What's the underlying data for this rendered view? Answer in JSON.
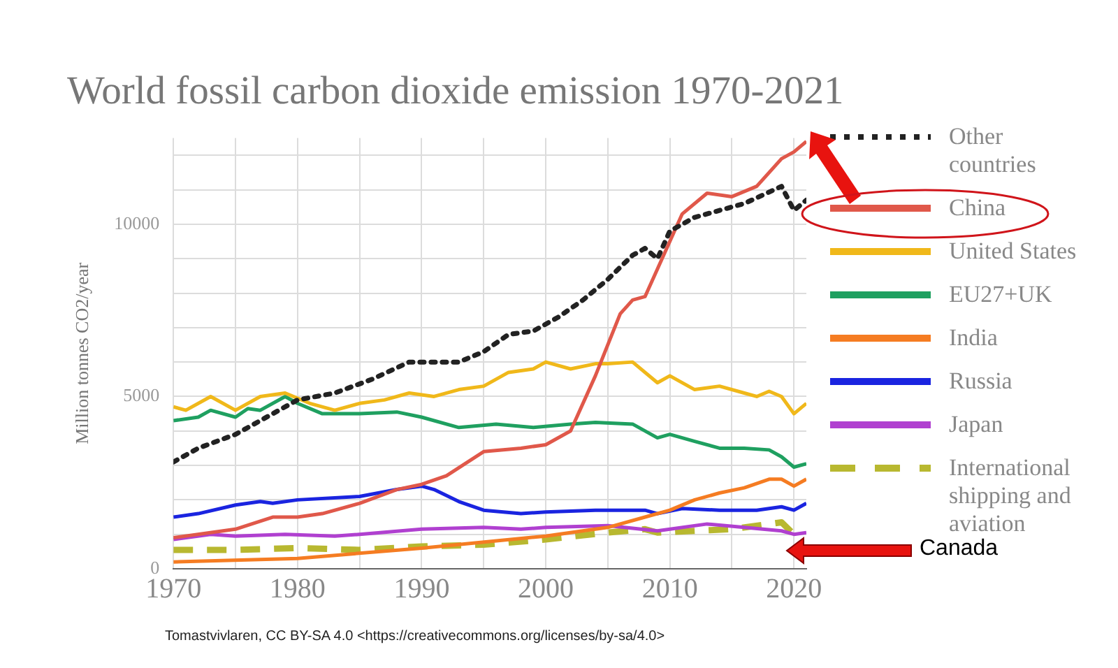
{
  "chart_data": {
    "type": "line",
    "title": "World fossil carbon dioxide emission 1970-2021",
    "ylabel": "Million tonnes CO2/year",
    "xlim": [
      1970,
      2021
    ],
    "xticks": [
      1970,
      {
        "value": 1975,
        "label": null
      },
      1980,
      {
        "value": 1985,
        "label": null
      },
      1990,
      {
        "value": 1995,
        "label": null
      },
      2000,
      {
        "value": 2005,
        "label": null
      },
      2010,
      {
        "value": 2015,
        "label": null
      },
      2020
    ],
    "ylim": [
      0,
      12500
    ],
    "yticks": [
      0,
      {
        "value": 1000,
        "label": null
      },
      {
        "value": 2000,
        "label": null
      },
      {
        "value": 3000,
        "label": null
      },
      {
        "value": 4000,
        "label": null
      },
      5000,
      {
        "value": 6000,
        "label": null
      },
      {
        "value": 7000,
        "label": null
      },
      {
        "value": 8000,
        "label": null
      },
      {
        "value": 9000,
        "label": null
      },
      10000,
      {
        "value": 11000,
        "label": null
      },
      {
        "value": 12000,
        "label": null
      }
    ],
    "grid": true,
    "legend": "right",
    "marker": "none",
    "series": [
      {
        "name": "Other countries",
        "color": "#222222",
        "line_style": "dotted",
        "x": [
          1970,
          1972,
          1975,
          1978,
          1980,
          1983,
          1986,
          1989,
          1993,
          1995,
          1997,
          1999,
          2001,
          2003,
          2005,
          2007,
          2008,
          2009,
          2010,
          2012,
          2014,
          2016,
          2019,
          2020,
          2021
        ],
        "values": [
          3100,
          3500,
          3900,
          4500,
          4900,
          5100,
          5500,
          6000,
          6000,
          6300,
          6800,
          6900,
          7300,
          7800,
          8400,
          9100,
          9300,
          9000,
          9800,
          10200,
          10400,
          10600,
          11100,
          10400,
          10700
        ]
      },
      {
        "name": "China",
        "color": "#e0584a",
        "x": [
          1970,
          1975,
          1978,
          1980,
          1982,
          1985,
          1988,
          1990,
          1992,
          1995,
          1998,
          2000,
          2002,
          2004,
          2006,
          2007,
          2008,
          2009,
          2010,
          2011,
          2013,
          2015,
          2017,
          2019,
          2020,
          2021
        ],
        "values": [
          900,
          1150,
          1500,
          1500,
          1600,
          1900,
          2300,
          2450,
          2700,
          3400,
          3500,
          3600,
          4000,
          5600,
          7400,
          7800,
          7900,
          8700,
          9500,
          10300,
          10900,
          10800,
          11100,
          11900,
          12100,
          12400
        ]
      },
      {
        "name": "United States",
        "color": "#f0b81a",
        "x": [
          1970,
          1971,
          1973,
          1975,
          1977,
          1979,
          1981,
          1983,
          1985,
          1987,
          1989,
          1991,
          1993,
          1995,
          1997,
          1999,
          2000,
          2002,
          2004,
          2005,
          2007,
          2009,
          2010,
          2012,
          2014,
          2016,
          2017,
          2018,
          2019,
          2020,
          2021
        ],
        "values": [
          4700,
          4600,
          5000,
          4600,
          5000,
          5100,
          4800,
          4600,
          4800,
          4900,
          5100,
          5000,
          5200,
          5300,
          5700,
          5800,
          6000,
          5800,
          5950,
          5950,
          6000,
          5400,
          5600,
          5200,
          5300,
          5100,
          5000,
          5150,
          5000,
          4500,
          4800
        ]
      },
      {
        "name": "EU27+UK",
        "color": "#1fa060",
        "x": [
          1970,
          1972,
          1973,
          1975,
          1976,
          1977,
          1979,
          1980,
          1982,
          1985,
          1988,
          1990,
          1993,
          1996,
          1999,
          2002,
          2004,
          2007,
          2009,
          2010,
          2012,
          2014,
          2016,
          2018,
          2019,
          2020,
          2021
        ],
        "values": [
          4300,
          4400,
          4600,
          4400,
          4650,
          4600,
          5000,
          4800,
          4500,
          4500,
          4550,
          4400,
          4100,
          4200,
          4100,
          4200,
          4250,
          4200,
          3800,
          3900,
          3700,
          3500,
          3500,
          3450,
          3250,
          2950,
          3050
        ]
      },
      {
        "name": "India",
        "color": "#f57c22",
        "x": [
          1970,
          1980,
          1990,
          2000,
          2005,
          2008,
          2010,
          2012,
          2014,
          2016,
          2018,
          2019,
          2020,
          2021
        ],
        "values": [
          200,
          300,
          600,
          950,
          1200,
          1500,
          1700,
          2000,
          2200,
          2350,
          2600,
          2600,
          2400,
          2600
        ]
      },
      {
        "name": "Russia",
        "color": "#1a24e0",
        "x": [
          1970,
          1972,
          1975,
          1977,
          1978,
          1980,
          1985,
          1988,
          1990,
          1991,
          1993,
          1995,
          1998,
          2000,
          2004,
          2008,
          2009,
          2011,
          2014,
          2017,
          2019,
          2020,
          2021
        ],
        "values": [
          1500,
          1600,
          1850,
          1950,
          1900,
          2000,
          2100,
          2300,
          2400,
          2300,
          1950,
          1700,
          1600,
          1650,
          1700,
          1700,
          1600,
          1750,
          1700,
          1700,
          1800,
          1700,
          1900
        ]
      },
      {
        "name": "Japan",
        "color": "#b040d0",
        "x": [
          1970,
          1973,
          1975,
          1979,
          1983,
          1985,
          1990,
          1995,
          1998,
          2000,
          2005,
          2009,
          2013,
          2016,
          2019,
          2020,
          2021
        ],
        "values": [
          850,
          1000,
          950,
          1000,
          950,
          1000,
          1150,
          1200,
          1150,
          1200,
          1250,
          1100,
          1300,
          1200,
          1100,
          1000,
          1050
        ]
      },
      {
        "name": "International shipping and aviation",
        "color": "#b8b830",
        "line_style": "dashed",
        "x": [
          1970,
          1975,
          1980,
          1985,
          1990,
          1995,
          2000,
          2005,
          2008,
          2009,
          2012,
          2015,
          2018,
          2019,
          2020
        ],
        "values": [
          550,
          550,
          600,
          550,
          650,
          700,
          850,
          1050,
          1150,
          1050,
          1100,
          1150,
          1300,
          1350,
          1000
        ]
      }
    ],
    "annotations": [
      "Canada",
      "Tomastvivlaren, CC BY-SA 4.0 <https://creativecommons.org/licenses/by-sa/4.0>"
    ]
  }
}
